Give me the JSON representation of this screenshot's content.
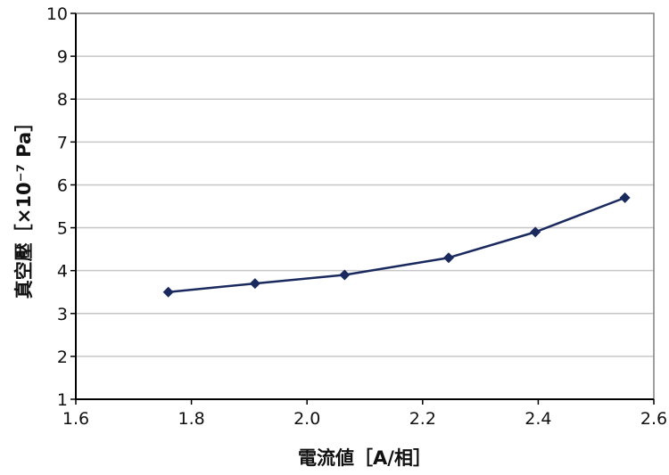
{
  "chart_data": {
    "type": "line",
    "xlabel": "電流値［A/相］",
    "ylabel": "真空壓［×10⁻⁷ Pa］",
    "xlim": [
      1.6,
      2.6
    ],
    "ylim": [
      1,
      10
    ],
    "xticks": [
      "1.6",
      "1.8",
      "2.0",
      "2.2",
      "2.4",
      "2.6"
    ],
    "yticks": [
      "1",
      "2",
      "3",
      "4",
      "5",
      "6",
      "7",
      "8",
      "9",
      "10"
    ],
    "grid": true,
    "legend": "none",
    "series": [
      {
        "color": "#1b2a5e",
        "marker": "diamond",
        "x": [
          1.76,
          1.91,
          2.065,
          2.245,
          2.395,
          2.55
        ],
        "y": [
          3.5,
          3.7,
          3.9,
          4.3,
          4.9,
          5.7
        ]
      }
    ]
  }
}
